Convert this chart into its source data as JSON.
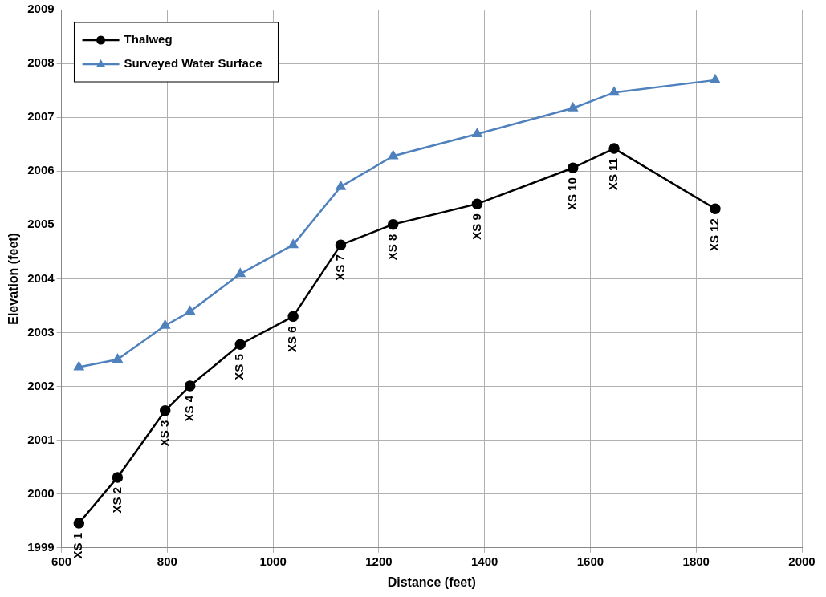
{
  "chart_data": {
    "type": "line",
    "xlabel": "Distance (feet)",
    "ylabel": "Elevation (feet)",
    "xlim": [
      600,
      2000
    ],
    "xticks": [
      600,
      800,
      1000,
      1200,
      1400,
      1600,
      1800,
      2000
    ],
    "ylim": [
      1999,
      2009
    ],
    "yticks": [
      1999,
      2000,
      2001,
      2002,
      2003,
      2004,
      2005,
      2006,
      2007,
      2008,
      2009
    ],
    "grid": true,
    "legend": "top left",
    "line_style": "solid",
    "series": [
      {
        "name": "Thalweg",
        "color": "#000000",
        "marker": "circle",
        "x": [
          633,
          706,
          796,
          843,
          938,
          1038,
          1128,
          1227,
          1386,
          1567,
          1645,
          1836
        ],
        "values": [
          1999.46,
          2000.31,
          2001.55,
          2002.01,
          2002.78,
          2003.3,
          2004.63,
          2005.01,
          2005.39,
          2006.06,
          2006.42,
          2005.3
        ]
      },
      {
        "name": "Surveyed Water Surface",
        "color": "#4f81bd",
        "marker": "triangle",
        "x": [
          633,
          706,
          796,
          843,
          938,
          1038,
          1128,
          1227,
          1386,
          1567,
          1645,
          1836
        ],
        "values": [
          2002.36,
          2002.5,
          2003.13,
          2003.39,
          2004.09,
          2004.63,
          2005.71,
          2006.28,
          2006.69,
          2007.17,
          2007.46,
          2007.69
        ]
      }
    ],
    "annotations": [
      {
        "text": "XS 1",
        "x": 633,
        "y": 1999.46
      },
      {
        "text": "XS 2",
        "x": 706,
        "y": 2000.31
      },
      {
        "text": "XS 3",
        "x": 796,
        "y": 2001.55
      },
      {
        "text": "XS 4",
        "x": 843,
        "y": 2002.01
      },
      {
        "text": "XS 5",
        "x": 938,
        "y": 2002.78
      },
      {
        "text": "XS 6",
        "x": 1038,
        "y": 2003.3
      },
      {
        "text": "XS 7",
        "x": 1128,
        "y": 2004.63
      },
      {
        "text": "XS 8",
        "x": 1227,
        "y": 2005.01
      },
      {
        "text": "XS 9",
        "x": 1386,
        "y": 2005.39
      },
      {
        "text": "XS 10",
        "x": 1567,
        "y": 2006.06
      },
      {
        "text": "XS 11",
        "x": 1645,
        "y": 2006.42
      },
      {
        "text": "XS 12",
        "x": 1836,
        "y": 2005.3
      }
    ]
  }
}
